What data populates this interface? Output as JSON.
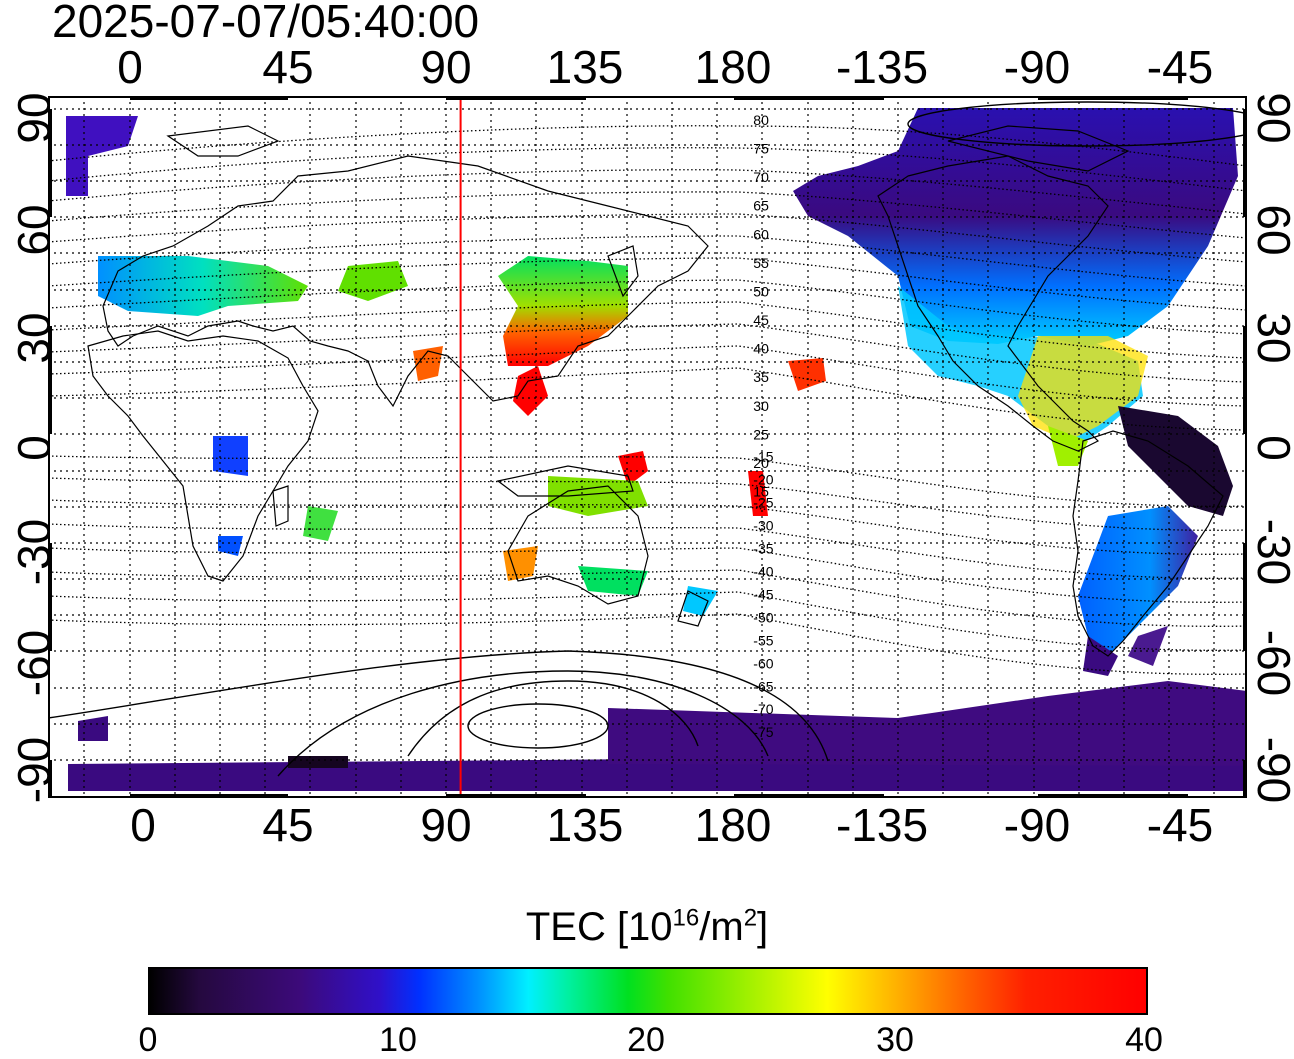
{
  "timestamp": "2025-07-07/05:40:00",
  "axes": {
    "top_ticks": [
      "0",
      "45",
      "90",
      "135",
      "180",
      "-135",
      "-90",
      "-45"
    ],
    "bottom_ticks": [
      "0",
      "45",
      "90",
      "135",
      "180",
      "-135",
      "-90",
      "-45"
    ],
    "left_ticks": [
      "90",
      "60",
      "30",
      "0",
      "-30",
      "-60",
      "-90"
    ],
    "right_ticks": [
      "90",
      "60",
      "30",
      "0",
      "-30",
      "-60",
      "-90"
    ],
    "lon_range": [
      -22,
      318
    ],
    "lat_range": [
      -97,
      97
    ]
  },
  "map": {
    "marker_longitude": 95,
    "marker_color": "#ff0000",
    "magnetic_latitude_labels": [
      "80",
      "75",
      "70",
      "65",
      "60",
      "55",
      "50",
      "45",
      "40",
      "35",
      "30",
      "25",
      "20",
      "15",
      "-15",
      "-20",
      "-25",
      "-30",
      "-35",
      "-40",
      "-45",
      "-50",
      "-55",
      "-60",
      "-65",
      "-70",
      "-75"
    ],
    "grid": true
  },
  "colorbar": {
    "title": "TEC  [10",
    "title_sup1": "16",
    "title_mid": "/m",
    "title_sup2": "2",
    "title_end": "]",
    "ticks": [
      "0",
      "10",
      "20",
      "30",
      "40"
    ],
    "range": [
      0,
      40
    ],
    "colormap": "black-purple-blue-cyan-green-yellow-red"
  }
}
